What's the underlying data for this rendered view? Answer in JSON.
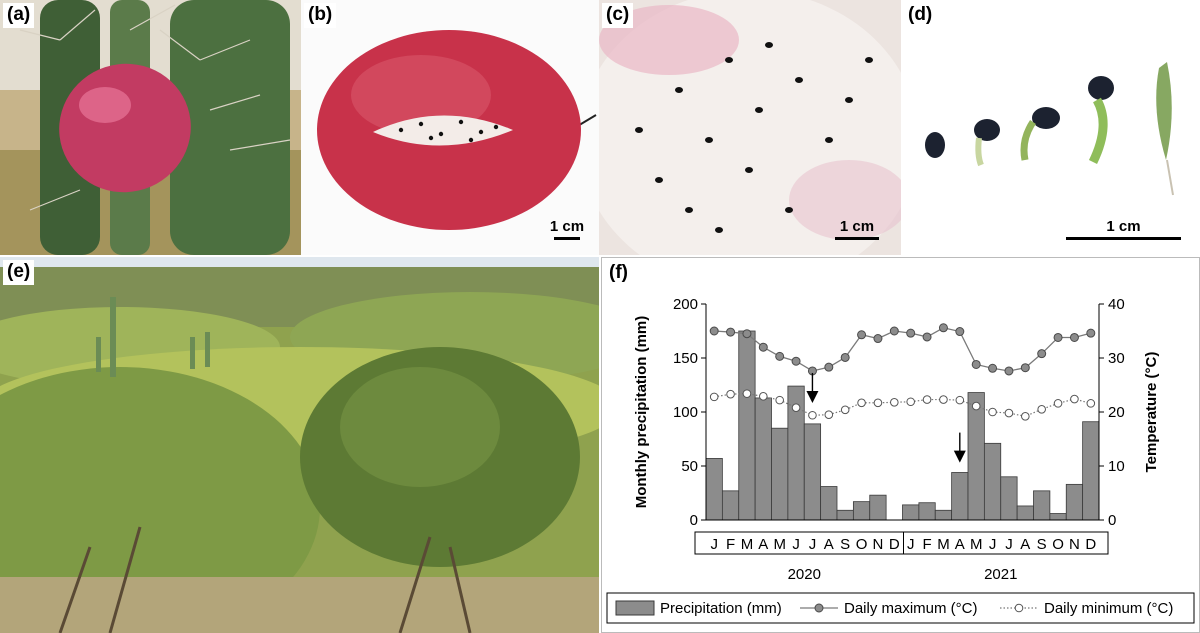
{
  "panels": {
    "a": {
      "label": "(a)"
    },
    "b": {
      "label": "(b)",
      "scale": "1 cm"
    },
    "c": {
      "label": "(c)",
      "scale": "1 cm"
    },
    "d": {
      "label": "(d)",
      "scale": "1 cm"
    },
    "e": {
      "label": "(e)"
    },
    "f": {
      "label": "(f)"
    }
  },
  "colors": {
    "bar_fill": "#8c8c8c",
    "max_line": "#7a7a7a",
    "max_marker": "#8c8c8c",
    "min_marker": "#ffffff",
    "fruit_red": "#c8324a",
    "pulp": "#f3ece8",
    "sky": "#dfe7ee",
    "vegetation": "#8fa24e"
  },
  "chart_data": {
    "type": "bar+line",
    "categories": [
      "J",
      "F",
      "M",
      "A",
      "M",
      "J",
      "J",
      "A",
      "S",
      "O",
      "N",
      "D",
      "J",
      "F",
      "M",
      "A",
      "M",
      "J",
      "J",
      "A",
      "S",
      "O",
      "N",
      "D"
    ],
    "years": [
      "2020",
      "2021"
    ],
    "ylabel_left": "Monthly precipitation (mm)",
    "ylabel_right": "Temperature (°C)",
    "ylim_left": [
      0,
      200
    ],
    "ylim_right": [
      0,
      40
    ],
    "yticks_left": [
      "0",
      "50",
      "100",
      "150",
      "200"
    ],
    "yticks_right": [
      "0",
      "10",
      "20",
      "30",
      "40"
    ],
    "series": [
      {
        "name": "Precipitation (mm)",
        "type": "bar",
        "axis": "left",
        "values": [
          57,
          27,
          175,
          113,
          85,
          124,
          89,
          31,
          9,
          17,
          23,
          0,
          14,
          16,
          9,
          44,
          118,
          71,
          40,
          13,
          27,
          6,
          33,
          91
        ]
      },
      {
        "name": "Daily maximum (°C)",
        "type": "line",
        "axis": "right",
        "values": [
          35.0,
          34.8,
          34.5,
          32.0,
          30.3,
          29.4,
          27.6,
          28.3,
          30.1,
          34.3,
          33.6,
          35.0,
          34.6,
          33.9,
          35.6,
          34.9,
          28.8,
          28.1,
          27.6,
          28.2,
          30.8,
          33.8,
          33.8,
          34.6
        ]
      },
      {
        "name": "Daily minimum (°C)",
        "type": "line",
        "axis": "right",
        "values": [
          22.8,
          23.3,
          23.4,
          22.9,
          22.2,
          20.8,
          19.4,
          19.5,
          20.4,
          21.7,
          21.7,
          21.8,
          21.9,
          22.3,
          22.3,
          22.2,
          21.1,
          20.0,
          19.8,
          19.2,
          20.5,
          21.6,
          22.4,
          21.6
        ]
      }
    ],
    "arrows": [
      {
        "month_index": 6,
        "temp": 27.6
      },
      {
        "month_index": 15,
        "temp": 11
      }
    ],
    "legend": {
      "placement": "bottom",
      "items": [
        "Precipitation (mm)",
        "Daily maximum (°C)",
        "Daily minimum (°C)"
      ]
    }
  }
}
